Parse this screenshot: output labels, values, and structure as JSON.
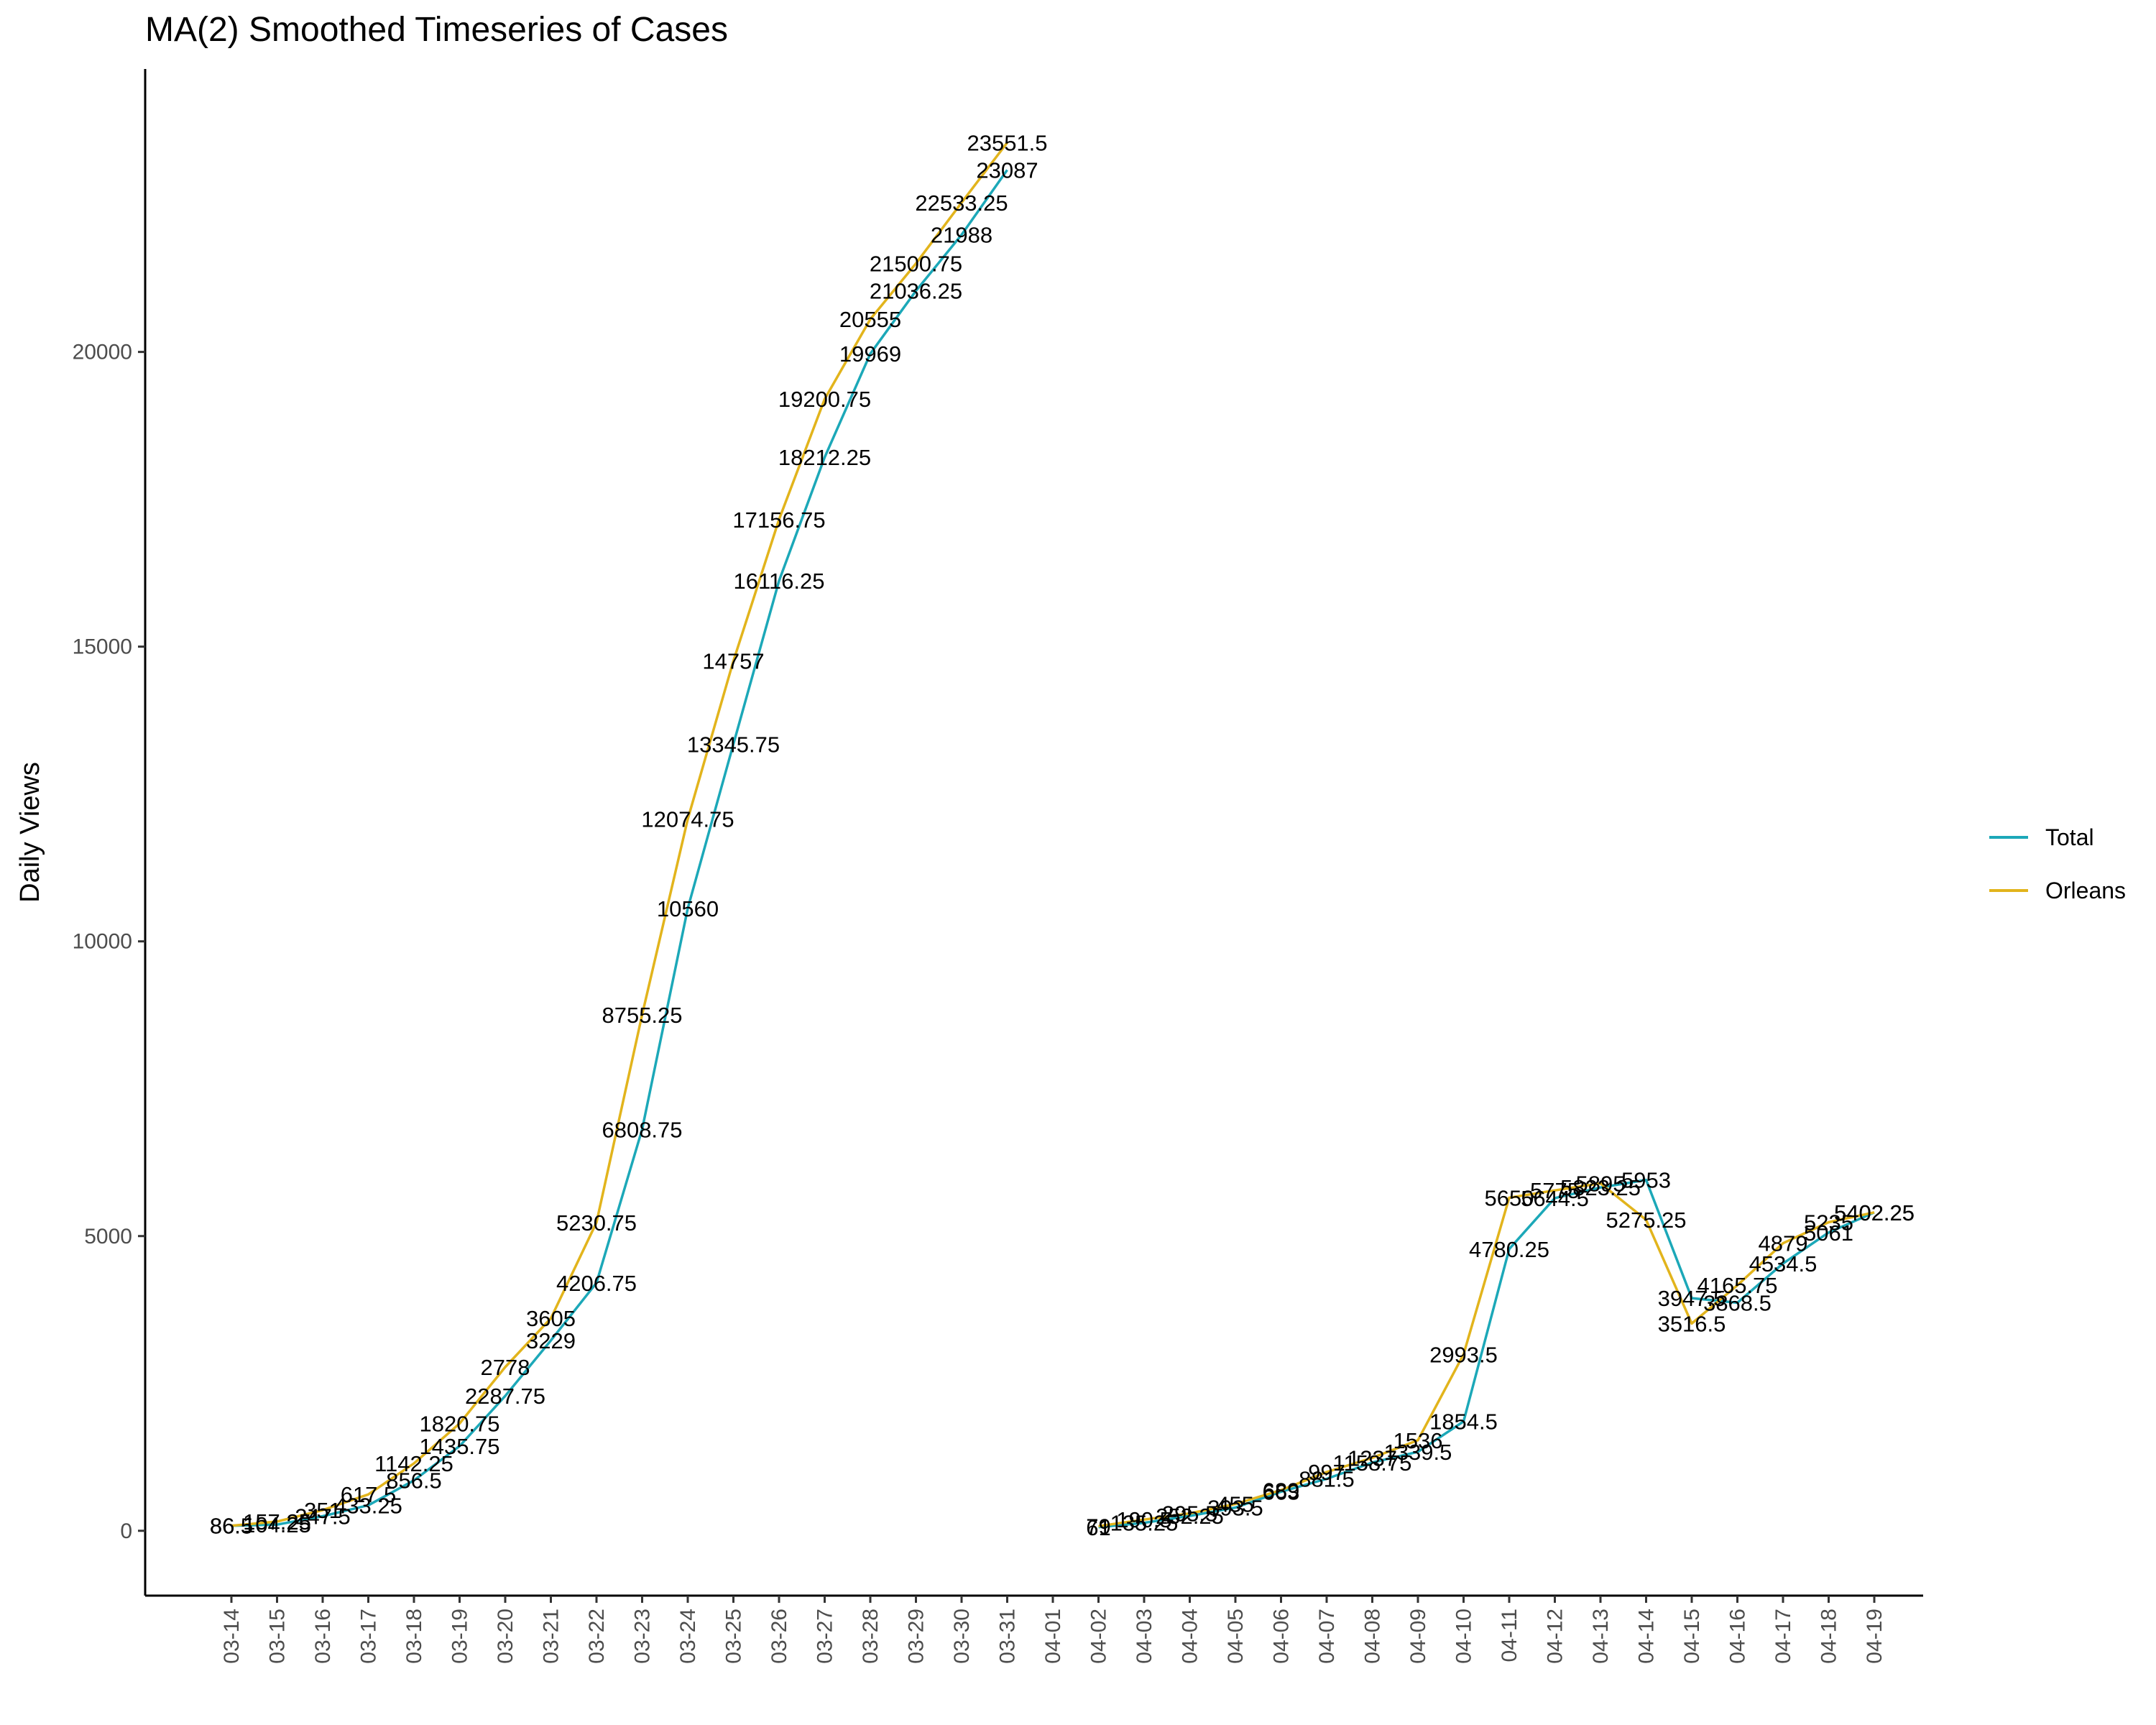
{
  "chart_data": {
    "type": "line",
    "title": "MA(2) Smoothed Timeseries of Cases",
    "xlabel": "",
    "ylabel": "Daily Views",
    "ylim": [
      -1100,
      24800
    ],
    "yticks": [
      0,
      5000,
      10000,
      15000,
      20000
    ],
    "grid": false,
    "legend_position": "right",
    "categories": [
      "03-14",
      "03-15",
      "03-16",
      "03-17",
      "03-18",
      "03-19",
      "03-20",
      "03-21",
      "03-22",
      "03-23",
      "03-24",
      "03-25",
      "03-26",
      "03-27",
      "03-28",
      "03-29",
      "03-30",
      "03-31",
      "04-01",
      "04-02",
      "04-03",
      "04-04",
      "04-05",
      "04-06",
      "04-07",
      "04-08",
      "04-09",
      "04-10",
      "04-11",
      "04-12",
      "04-13",
      "04-14",
      "04-15",
      "04-16",
      "04-17",
      "04-18",
      "04-19"
    ],
    "series": [
      {
        "name": "Total",
        "color": "#1CA8B8",
        "points": [
          {
            "x": "03-14",
            "y": 86.5,
            "label": "86.5"
          },
          {
            "x": "03-15",
            "y": 104.25,
            "label": "104.25"
          },
          {
            "x": "03-16",
            "y": 247.5,
            "label": "247.5"
          },
          {
            "x": "03-17",
            "y": 433.25,
            "label": "433.25"
          },
          {
            "x": "03-18",
            "y": 856.5,
            "label": "856.5"
          },
          {
            "x": "03-19",
            "y": 1435.75,
            "label": "1435.75"
          },
          {
            "x": "03-20",
            "y": 2287.75,
            "label": "2287.75"
          },
          {
            "x": "03-21",
            "y": 3229,
            "label": "3229"
          },
          {
            "x": "03-22",
            "y": 4206.75,
            "label": "4206.75"
          },
          {
            "x": "03-23",
            "y": 6808.75,
            "label": "6808.75"
          },
          {
            "x": "03-24",
            "y": 10560,
            "label": "10560"
          },
          {
            "x": "03-25",
            "y": 13345.75,
            "label": "13345.75"
          },
          {
            "x": "03-26",
            "y": 16116.25,
            "label": "16116.25"
          },
          {
            "x": "03-27",
            "y": 18212.25,
            "label": "18212.25"
          },
          {
            "x": "03-28",
            "y": 19969,
            "label": "19969"
          },
          {
            "x": "03-29",
            "y": 21036.25,
            "label": "21036.25"
          },
          {
            "x": "03-30",
            "y": 21988,
            "label": "21988"
          },
          {
            "x": "03-31",
            "y": 23087,
            "label": "23087"
          },
          {
            "x": "04-02",
            "y": 61,
            "label": "61"
          },
          {
            "x": "04-03",
            "y": 135.25,
            "label": "135.25"
          },
          {
            "x": "04-04",
            "y": 252.25,
            "label": "252.25"
          },
          {
            "x": "04-05",
            "y": 393.5,
            "label": "393.5"
          },
          {
            "x": "04-06",
            "y": 663,
            "label": "663"
          },
          {
            "x": "04-07",
            "y": 881.5,
            "label": "881.5"
          },
          {
            "x": "04-08",
            "y": 1158.75,
            "label": "1158.75"
          },
          {
            "x": "04-09",
            "y": 1339.5,
            "label": "1339.5"
          },
          {
            "x": "04-10",
            "y": 1854.5,
            "label": "1854.5"
          },
          {
            "x": "04-11",
            "y": 4780.25,
            "label": "4780.25"
          },
          {
            "x": "04-12",
            "y": 5644.5,
            "label": "5644.5"
          },
          {
            "x": "04-13",
            "y": 5823.25,
            "label": "5823.25"
          },
          {
            "x": "04-14",
            "y": 5953,
            "label": "5953"
          },
          {
            "x": "04-15",
            "y": 3947.5,
            "label": "3947.5"
          },
          {
            "x": "04-16",
            "y": 3868.5,
            "label": "3868.5"
          },
          {
            "x": "04-17",
            "y": 4534.5,
            "label": "4534.5"
          },
          {
            "x": "04-18",
            "y": 5061,
            "label": "5061"
          },
          {
            "x": "04-19",
            "y": 5402.25,
            "label": "5402.25"
          }
        ]
      },
      {
        "name": "Orleans",
        "color": "#E2B41C",
        "points": [
          {
            "x": "03-14",
            "y": 86.5,
            "label": "86.5"
          },
          {
            "x": "03-15",
            "y": 157.25,
            "label": "157.25"
          },
          {
            "x": "03-16",
            "y": 351,
            "label": "351"
          },
          {
            "x": "03-17",
            "y": 617.5,
            "label": "617.5"
          },
          {
            "x": "03-18",
            "y": 1142.25,
            "label": "1142.25"
          },
          {
            "x": "03-19",
            "y": 1820.75,
            "label": "1820.75"
          },
          {
            "x": "03-20",
            "y": 2778,
            "label": "2778"
          },
          {
            "x": "03-21",
            "y": 3605,
            "label": "3605"
          },
          {
            "x": "03-22",
            "y": 5230.75,
            "label": "5230.75"
          },
          {
            "x": "03-23",
            "y": 8755.25,
            "label": "8755.25"
          },
          {
            "x": "03-24",
            "y": 12074.75,
            "label": "12074.75"
          },
          {
            "x": "03-25",
            "y": 14757,
            "label": "14757"
          },
          {
            "x": "03-26",
            "y": 17156.75,
            "label": "17156.75"
          },
          {
            "x": "03-27",
            "y": 19200.75,
            "label": "19200.75"
          },
          {
            "x": "03-28",
            "y": 20555,
            "label": "20555"
          },
          {
            "x": "03-29",
            "y": 21500.75,
            "label": "21500.75"
          },
          {
            "x": "03-30",
            "y": 22533.25,
            "label": "22533.25"
          },
          {
            "x": "03-31",
            "y": 23551.5,
            "label": "23551.5"
          },
          {
            "x": "04-02",
            "y": 79,
            "label": "79"
          },
          {
            "x": "04-03",
            "y": 190.5,
            "label": "190.5"
          },
          {
            "x": "04-04",
            "y": 295.5,
            "label": "295.5"
          },
          {
            "x": "04-05",
            "y": 455,
            "label": "455"
          },
          {
            "x": "04-06",
            "y": 689,
            "label": "689"
          },
          {
            "x": "04-07",
            "y": 997,
            "label": "997"
          },
          {
            "x": "04-08",
            "y": 1237,
            "label": "1237"
          },
          {
            "x": "04-09",
            "y": 1536,
            "label": "1536"
          },
          {
            "x": "04-10",
            "y": 2993.5,
            "label": "2993.5"
          },
          {
            "x": "04-11",
            "y": 5650,
            "label": "5650"
          },
          {
            "x": "04-12",
            "y": 5775,
            "label": "5775"
          },
          {
            "x": "04-13",
            "y": 5895,
            "label": "5895"
          },
          {
            "x": "04-14",
            "y": 5275.25,
            "label": "5275.25"
          },
          {
            "x": "04-15",
            "y": 3516.5,
            "label": "3516.5"
          },
          {
            "x": "04-16",
            "y": 4165.75,
            "label": "4165.75"
          },
          {
            "x": "04-17",
            "y": 4879,
            "label": "4879"
          },
          {
            "x": "04-18",
            "y": 5235,
            "label": "5235"
          },
          {
            "x": "04-19",
            "y": 5402.25,
            "label": "5402.25"
          }
        ]
      }
    ]
  }
}
